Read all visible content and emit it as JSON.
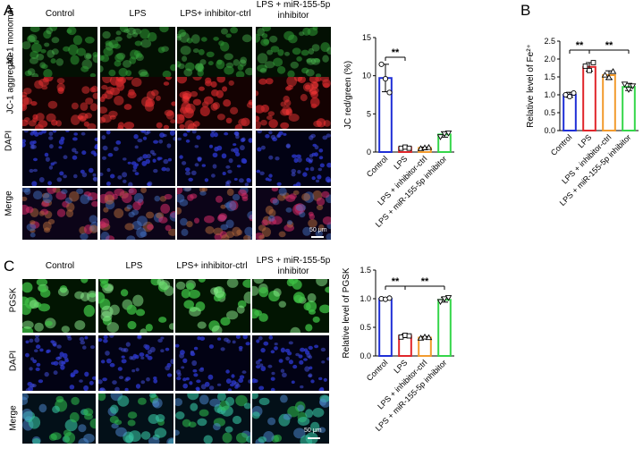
{
  "panelA": {
    "label": "A",
    "columns": [
      "Control",
      "LPS",
      "LPS+ inhibitor-ctrl",
      "LPS + miR-155-5p inhibitor"
    ],
    "rows": [
      "JC-1 monomer",
      "JC-1 aggregate",
      "DAPI",
      "Merge"
    ],
    "scale_bar": "50 μm"
  },
  "panelC": {
    "label": "C",
    "columns": [
      "Control",
      "LPS",
      "LPS+ inhibitor-ctrl",
      "LPS + miR-155-5p inhibitor"
    ],
    "rows": [
      "PGSK",
      "DAPI",
      "Merge"
    ],
    "scale_bar": "50 μm"
  },
  "panelB": {
    "label": "B"
  },
  "colors": {
    "control": "#1f2fd6",
    "lps": "#e0262b",
    "ctrl": "#f29b2e",
    "inhibitor": "#35d64a"
  },
  "chart_data": [
    {
      "id": "chartA",
      "type": "bar",
      "categories": [
        "Control",
        "LPS",
        "LPS + inhibitor-ctrl",
        "LPS + miR-155-5p inhibitor"
      ],
      "values": [
        9.7,
        0.6,
        0.55,
        2.3
      ],
      "errors": [
        1.8,
        0.15,
        0.1,
        0.35
      ],
      "points": [
        [
          11.5,
          9.6,
          7.8
        ],
        [
          0.5,
          0.65,
          0.5
        ],
        [
          0.45,
          0.55,
          0.6
        ],
        [
          2.0,
          2.4,
          2.5
        ]
      ],
      "ylabel": "JC red/green (%)",
      "ylim": [
        0,
        15
      ],
      "yticks": [
        0,
        5,
        10,
        15
      ],
      "significance": [
        {
          "from": 0,
          "to": 1,
          "label": "**"
        }
      ]
    },
    {
      "id": "chartB",
      "type": "bar",
      "categories": [
        "Control",
        "LPS",
        "LPS + inhibitor-ctrl",
        "LPS + miR-155-5p inhibitor"
      ],
      "values": [
        1.0,
        1.78,
        1.55,
        1.22
      ],
      "errors": [
        0.07,
        0.12,
        0.12,
        0.1
      ],
      "points": [
        [
          1.0,
          0.95,
          1.05
        ],
        [
          1.8,
          1.68,
          1.9
        ],
        [
          1.55,
          1.48,
          1.65
        ],
        [
          1.3,
          1.15,
          1.25
        ]
      ],
      "ylabel": "Relative level of Fe²⁺",
      "ylim": [
        0,
        2.5
      ],
      "yticks": [
        0.0,
        0.5,
        1.0,
        1.5,
        2.0,
        2.5
      ],
      "significance": [
        {
          "from": 0,
          "to": 1,
          "label": "**"
        },
        {
          "from": 1,
          "to": 3,
          "label": "**"
        }
      ]
    },
    {
      "id": "chartC",
      "type": "bar",
      "categories": [
        "Control",
        "LPS",
        "LPS + inhibitor-ctrl",
        "LPS + miR-155-5p inhibitor"
      ],
      "values": [
        1.0,
        0.35,
        0.32,
        0.98
      ],
      "errors": [
        0.02,
        0.03,
        0.02,
        0.04
      ],
      "points": [
        [
          1.0,
          0.99,
          1.01
        ],
        [
          0.33,
          0.36,
          0.35
        ],
        [
          0.31,
          0.33,
          0.32
        ],
        [
          0.95,
          1.0,
          1.02
        ]
      ],
      "ylabel": "Relative level of PGSK",
      "ylim": [
        0,
        1.5
      ],
      "yticks": [
        0.0,
        0.5,
        1.0,
        1.5
      ],
      "significance": [
        {
          "from": 0,
          "to": 1,
          "label": "**"
        },
        {
          "from": 1,
          "to": 3,
          "label": "**"
        }
      ]
    }
  ]
}
